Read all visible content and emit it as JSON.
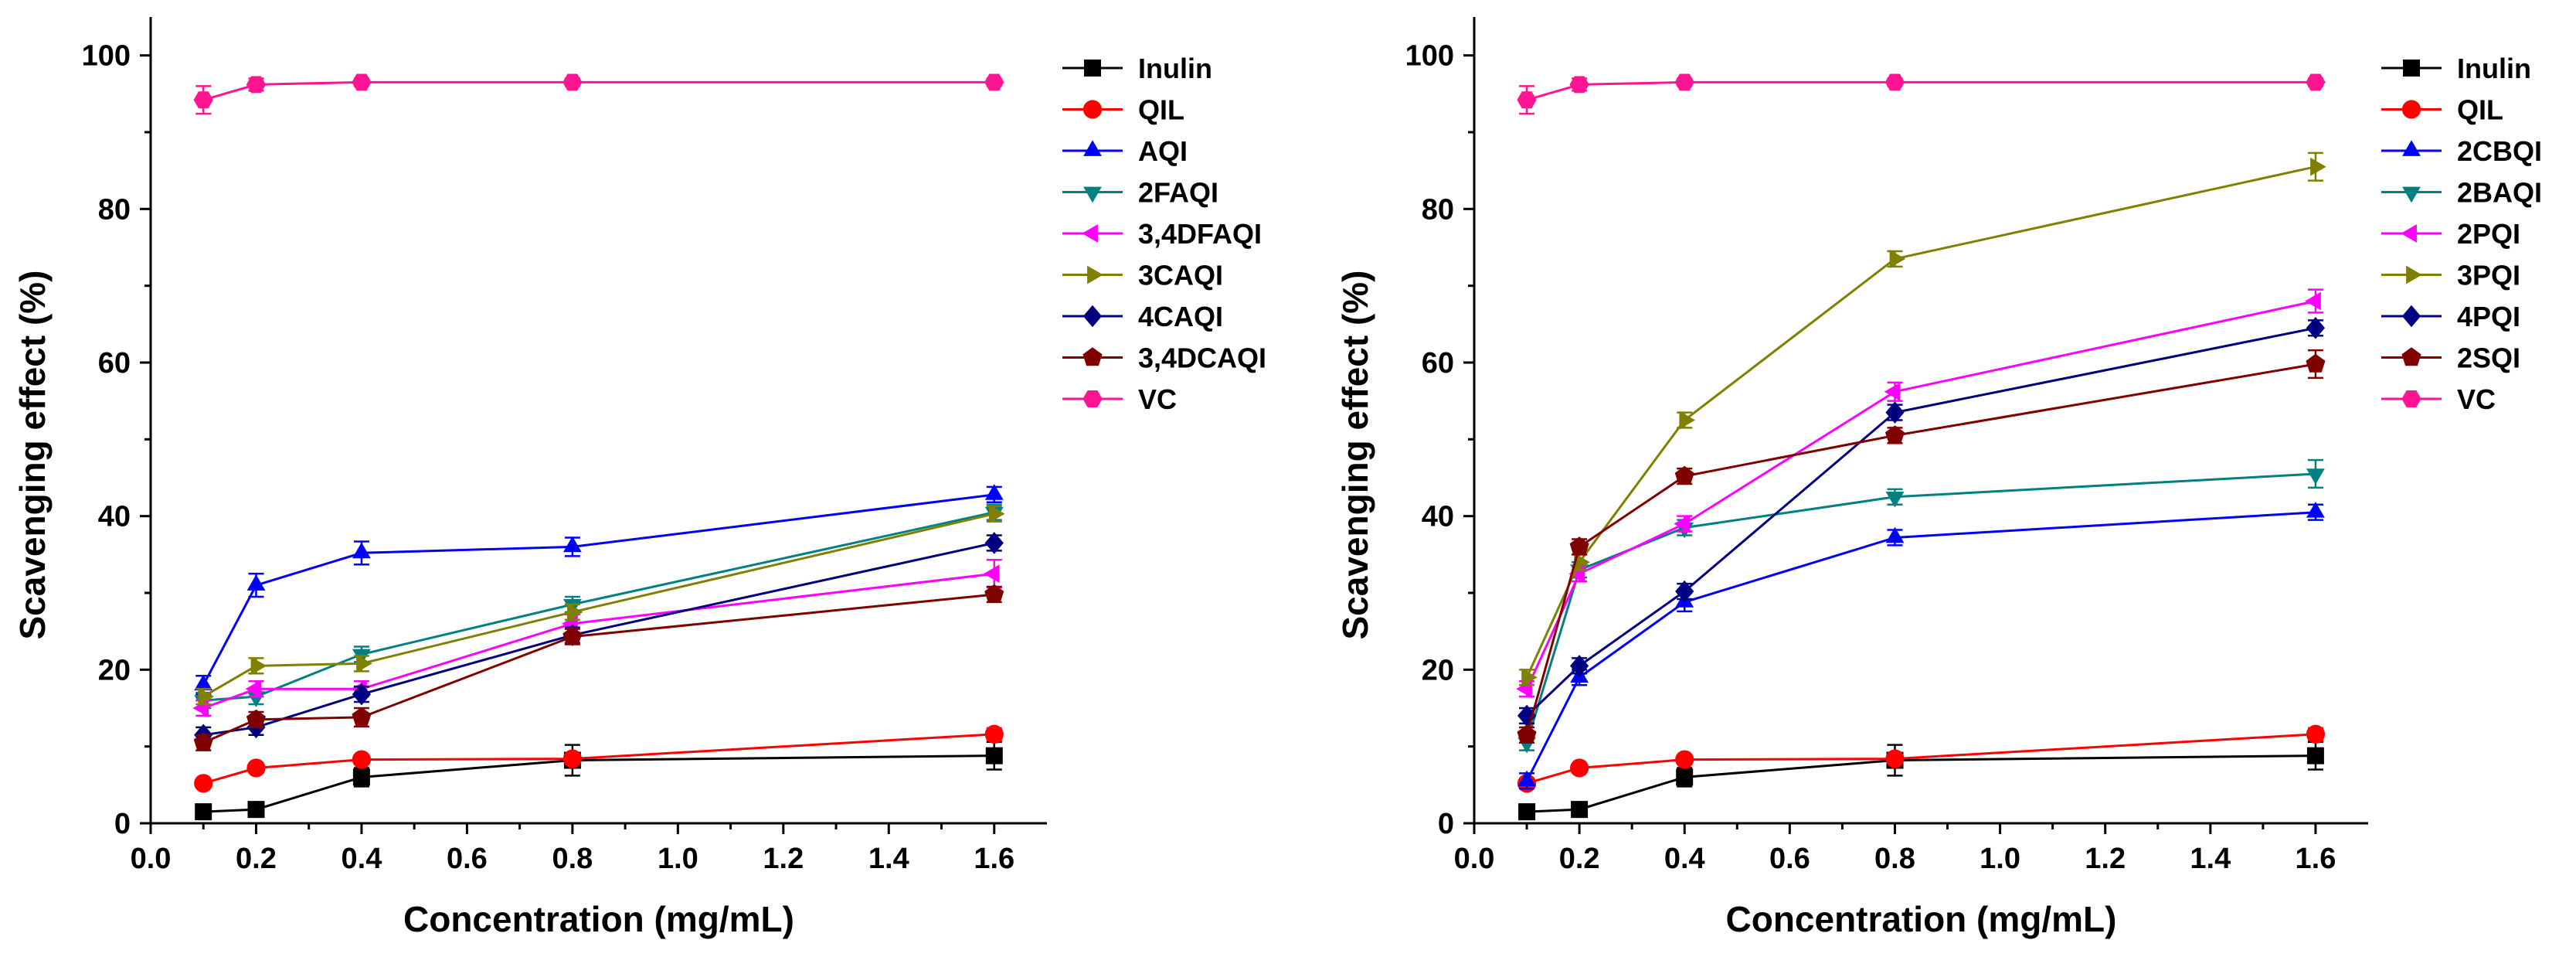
{
  "chart_data": [
    {
      "type": "line",
      "xlabel": "Concentration (mg/mL)",
      "ylabel": "Scavenging effect (%)",
      "xlim": [
        0.0,
        1.7
      ],
      "ylim": [
        0,
        105
      ],
      "xticks": [
        0.0,
        0.2,
        0.4,
        0.6,
        0.8,
        1.0,
        1.2,
        1.4,
        1.6
      ],
      "xtick_labels": [
        "0.0",
        "0.2",
        "0.4",
        "0.6",
        "0.8",
        "1.0",
        "1.2",
        "1.4",
        "1.6"
      ],
      "yticks": [
        0,
        20,
        40,
        60,
        80,
        100
      ],
      "ytick_labels": [
        "0",
        "20",
        "40",
        "60",
        "80",
        "100"
      ],
      "x": [
        0.1,
        0.2,
        0.4,
        0.8,
        1.6
      ],
      "legend_position": "top-right outside",
      "series": [
        {
          "name": "Inulin",
          "color": "#000000",
          "marker": "square",
          "values": [
            1.5,
            1.8,
            6.0,
            8.2,
            8.8
          ],
          "errors": [
            0.8,
            0.8,
            1.2,
            2.0,
            1.8
          ]
        },
        {
          "name": "QIL",
          "color": "#ff0000",
          "marker": "circle",
          "values": [
            5.2,
            7.2,
            8.3,
            8.4,
            11.6
          ],
          "errors": [
            0.5,
            0.5,
            0.5,
            0.5,
            0.8
          ]
        },
        {
          "name": "AQI",
          "color": "#0000ff",
          "marker": "triangle-up",
          "values": [
            18.0,
            31.0,
            35.2,
            36.0,
            42.8
          ],
          "errors": [
            1.2,
            1.5,
            1.5,
            1.2,
            1.0
          ]
        },
        {
          "name": "2FAQI",
          "color": "#008080",
          "marker": "triangle-down",
          "values": [
            16.0,
            16.5,
            22.0,
            28.5,
            40.5
          ],
          "errors": [
            1.0,
            1.0,
            1.0,
            1.0,
            1.0
          ]
        },
        {
          "name": "3,4DFAQI",
          "color": "#ff00ff",
          "marker": "triangle-left",
          "values": [
            15.0,
            17.5,
            17.5,
            26.0,
            32.5
          ],
          "errors": [
            1.0,
            1.0,
            1.0,
            1.2,
            1.8
          ]
        },
        {
          "name": "3CAQI",
          "color": "#808000",
          "marker": "triangle-right",
          "values": [
            16.5,
            20.5,
            20.8,
            27.5,
            40.3
          ],
          "errors": [
            1.0,
            1.0,
            1.0,
            1.0,
            1.0
          ]
        },
        {
          "name": "4CAQI",
          "color": "#000080",
          "marker": "diamond",
          "values": [
            11.5,
            12.5,
            16.8,
            24.5,
            36.5
          ],
          "errors": [
            1.0,
            1.0,
            1.0,
            1.0,
            1.0
          ]
        },
        {
          "name": "3,4DCAQI",
          "color": "#800000",
          "marker": "pentagon",
          "values": [
            10.5,
            13.5,
            13.8,
            24.3,
            29.8
          ],
          "errors": [
            1.0,
            1.0,
            1.2,
            1.0,
            1.0
          ]
        },
        {
          "name": "VC",
          "color": "#ff1493",
          "marker": "hexagon",
          "values": [
            94.2,
            96.2,
            96.5,
            96.5,
            96.5
          ],
          "errors": [
            1.8,
            0.8,
            0.5,
            0.5,
            0.5
          ]
        }
      ]
    },
    {
      "type": "line",
      "xlabel": "Concentration (mg/mL)",
      "ylabel": "Scavenging effect (%)",
      "xlim": [
        0.0,
        1.7
      ],
      "ylim": [
        0,
        105
      ],
      "xticks": [
        0.0,
        0.2,
        0.4,
        0.6,
        0.8,
        1.0,
        1.2,
        1.4,
        1.6
      ],
      "xtick_labels": [
        "0.0",
        "0.2",
        "0.4",
        "0.6",
        "0.8",
        "1.0",
        "1.2",
        "1.4",
        "1.6"
      ],
      "yticks": [
        0,
        20,
        40,
        60,
        80,
        100
      ],
      "ytick_labels": [
        "0",
        "20",
        "40",
        "60",
        "80",
        "100"
      ],
      "x": [
        0.1,
        0.2,
        0.4,
        0.8,
        1.6
      ],
      "legend_position": "top-right outside",
      "series": [
        {
          "name": "Inulin",
          "color": "#000000",
          "marker": "square",
          "values": [
            1.5,
            1.8,
            6.0,
            8.2,
            8.8
          ],
          "errors": [
            0.8,
            0.8,
            1.2,
            2.0,
            1.8
          ]
        },
        {
          "name": "QIL",
          "color": "#ff0000",
          "marker": "circle",
          "values": [
            5.2,
            7.2,
            8.3,
            8.4,
            11.6
          ],
          "errors": [
            0.5,
            0.5,
            0.5,
            0.5,
            0.8
          ]
        },
        {
          "name": "2CBQI",
          "color": "#0000ff",
          "marker": "triangle-up",
          "values": [
            5.5,
            19.0,
            28.8,
            37.2,
            40.5
          ],
          "errors": [
            1.0,
            1.0,
            1.2,
            1.0,
            1.0
          ]
        },
        {
          "name": "2BAQI",
          "color": "#008080",
          "marker": "triangle-down",
          "values": [
            10.5,
            33.0,
            38.5,
            42.5,
            45.5
          ],
          "errors": [
            1.0,
            1.0,
            1.0,
            1.0,
            1.8
          ]
        },
        {
          "name": "2PQI",
          "color": "#ff00ff",
          "marker": "triangle-left",
          "values": [
            17.5,
            32.5,
            39.0,
            56.2,
            68.0
          ],
          "errors": [
            1.0,
            1.0,
            1.0,
            1.2,
            1.5
          ]
        },
        {
          "name": "3PQI",
          "color": "#808000",
          "marker": "triangle-right",
          "values": [
            19.0,
            34.0,
            52.5,
            73.5,
            85.5
          ],
          "errors": [
            1.0,
            1.0,
            1.0,
            1.0,
            1.8
          ]
        },
        {
          "name": "4PQI",
          "color": "#000080",
          "marker": "diamond",
          "values": [
            14.0,
            20.5,
            30.2,
            53.5,
            64.5
          ],
          "errors": [
            1.0,
            1.0,
            1.0,
            1.0,
            1.0
          ]
        },
        {
          "name": "2SQI",
          "color": "#800000",
          "marker": "pentagon",
          "values": [
            11.5,
            36.0,
            45.2,
            50.5,
            59.8
          ],
          "errors": [
            1.0,
            1.0,
            1.0,
            1.0,
            1.8
          ]
        },
        {
          "name": "VC",
          "color": "#ff1493",
          "marker": "hexagon",
          "values": [
            94.2,
            96.2,
            96.5,
            96.5,
            96.5
          ],
          "errors": [
            1.8,
            0.8,
            0.5,
            0.5,
            0.5
          ]
        }
      ]
    }
  ]
}
